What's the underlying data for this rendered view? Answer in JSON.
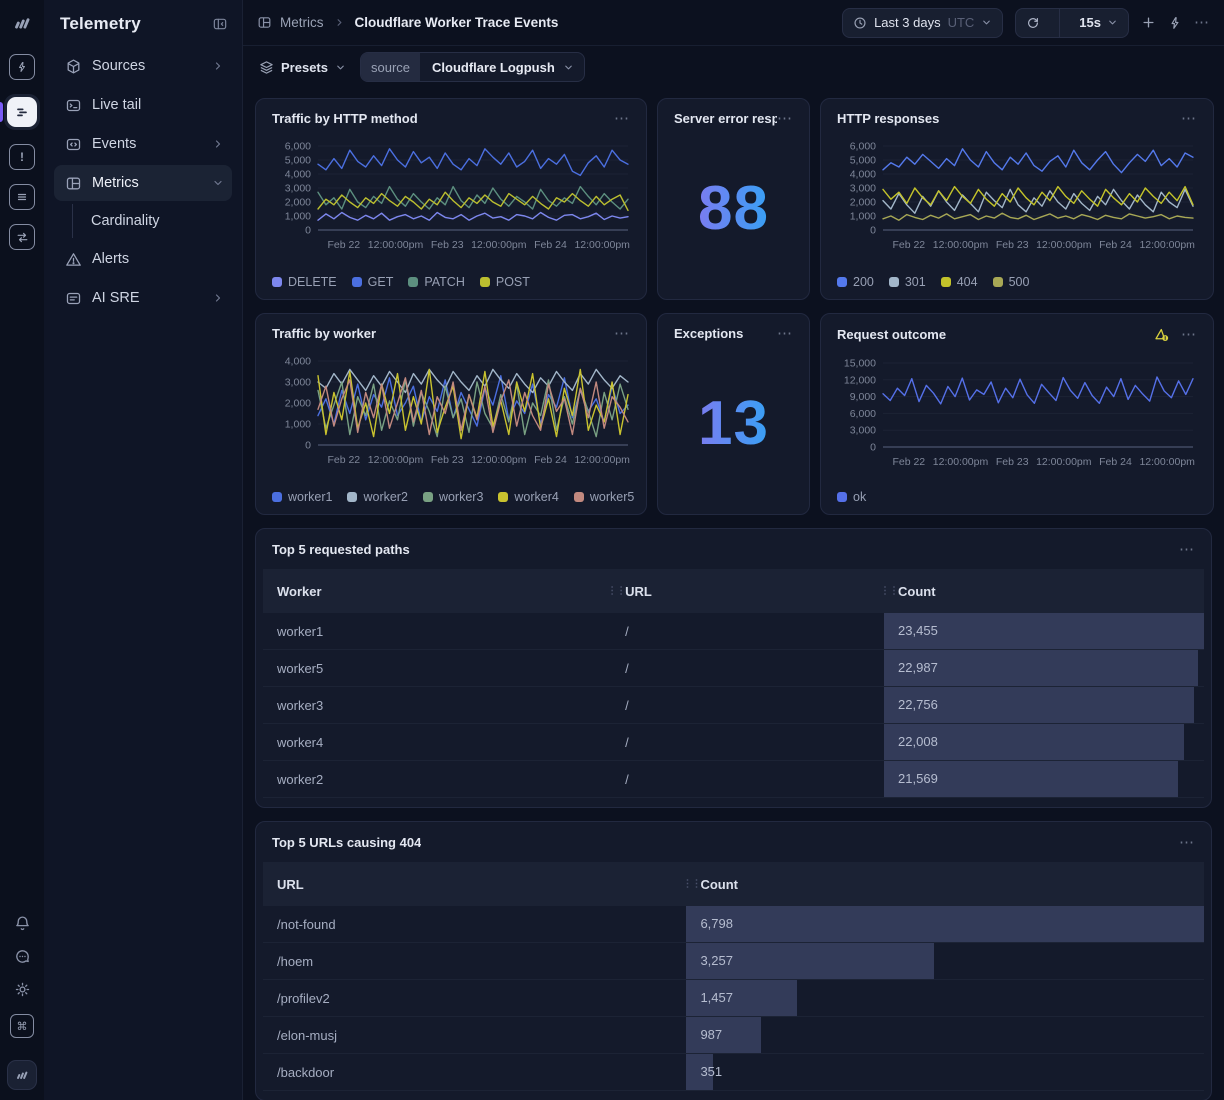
{
  "nav": {
    "title": "Telemetry",
    "items": [
      {
        "label": "Sources",
        "chevron": "right"
      },
      {
        "label": "Live tail"
      },
      {
        "label": "Events",
        "chevron": "right"
      },
      {
        "label": "Metrics",
        "chevron": "down",
        "active": true
      },
      {
        "label": "Cardinality",
        "sub": true
      },
      {
        "label": "Alerts"
      },
      {
        "label": "AI SRE",
        "chevron": "right"
      }
    ]
  },
  "rail_icons": [
    "logo",
    "bolt",
    "live-tail",
    "alert-square",
    "logs",
    "flows",
    "bell",
    "feedback",
    "theme",
    "shortcuts",
    "account"
  ],
  "topbar": {
    "breadcrumb": {
      "section": "Metrics",
      "page": "Cloudflare Worker Trace Events"
    },
    "time_range": {
      "label": "Last 3 days",
      "timezone": "UTC"
    },
    "refresh_interval": "15s"
  },
  "filters": {
    "presets_label": "Presets",
    "source_key": "source",
    "source_value": "Cloudflare Logpush"
  },
  "cards": {
    "traffic_by_http_method": {
      "title": "Traffic by HTTP method"
    },
    "server_errors": {
      "title": "Server error respo...",
      "value": "88"
    },
    "http_responses": {
      "title": "HTTP responses"
    },
    "traffic_by_worker": {
      "title": "Traffic by worker"
    },
    "exceptions": {
      "title": "Exceptions",
      "value": "13"
    },
    "request_outcome": {
      "title": "Request outcome",
      "has_warning": true
    }
  },
  "colors": {
    "stat_gradient_start": "#7a7cf0",
    "stat_gradient_end": "#38a0f5",
    "warning": "#d9d23e",
    "accent": "#7a5cf5"
  },
  "chart_data": [
    {
      "type": "line",
      "title": "Traffic by HTTP method",
      "ylim": [
        0,
        6000
      ],
      "yticks": [
        0,
        1000,
        2000,
        3000,
        4000,
        5000,
        6000
      ],
      "xticks": [
        "Feb 22",
        "12:00:00pm",
        "Feb 23",
        "12:00:00pm",
        "Feb 24",
        "12:00:00pm"
      ],
      "grid": true,
      "legend_position": "bottom",
      "series": [
        {
          "name": "DELETE",
          "color": "#7d87ee",
          "values": [
            700,
            1150,
            800,
            1250,
            900,
            700,
            1050,
            800,
            1200,
            700,
            950,
            1100,
            800,
            1000,
            700,
            1250,
            900,
            800,
            1100,
            700,
            1000,
            1200,
            850,
            950,
            700,
            1100,
            1000,
            800,
            1250,
            900,
            700,
            1050,
            1100,
            800,
            950,
            1200,
            750,
            1000,
            850,
            950
          ]
        },
        {
          "name": "GET",
          "color": "#4b6fe0",
          "values": [
            4700,
            4300,
            5100,
            4400,
            5700,
            4900,
            4500,
            5300,
            4600,
            5800,
            5000,
            4500,
            5600,
            4800,
            5200,
            4400,
            5500,
            4700,
            4300,
            5100,
            4600,
            5800,
            5200,
            4700,
            5500,
            4500,
            4900,
            5700,
            4400,
            5100,
            4700,
            5400,
            4200,
            3900,
            4800,
            5300,
            4500,
            5700,
            5000,
            4700
          ]
        },
        {
          "name": "PATCH",
          "color": "#5c8f7f",
          "values": [
            2700,
            1800,
            2300,
            1500,
            2900,
            2000,
            1600,
            2400,
            1900,
            3100,
            2200,
            1700,
            2600,
            2000,
            1500,
            2300,
            1800,
            3100,
            2100,
            1600,
            2500,
            1900,
            3000,
            2200,
            1700,
            2400,
            2000,
            1500,
            2900,
            2100,
            1700,
            2300,
            1900,
            3100,
            2400,
            1800,
            2600,
            2000,
            1500,
            2200
          ]
        },
        {
          "name": "POST",
          "color": "#bcbf2f",
          "values": [
            1500,
            2200,
            1800,
            2500,
            2000,
            1600,
            2300,
            1900,
            2600,
            2100,
            1700,
            2400,
            2000,
            1500,
            2200,
            1800,
            2700,
            2100,
            1600,
            2300,
            1900,
            2500,
            2000,
            1700,
            2600,
            2200,
            1800,
            2400,
            1900,
            1500,
            2300,
            2000,
            2600,
            2100,
            1700,
            2400,
            1800,
            2200,
            2500,
            1400
          ]
        }
      ]
    },
    {
      "type": "line",
      "title": "HTTP responses",
      "ylim": [
        0,
        6000
      ],
      "yticks": [
        0,
        1000,
        2000,
        3000,
        4000,
        5000,
        6000
      ],
      "xticks": [
        "Feb 22",
        "12:00:00pm",
        "Feb 23",
        "12:00:00pm",
        "Feb 24",
        "12:00:00pm"
      ],
      "grid": true,
      "legend_position": "bottom",
      "series": [
        {
          "name": "200",
          "color": "#5479ec",
          "values": [
            4300,
            4800,
            4500,
            5200,
            4700,
            5400,
            4900,
            4400,
            5100,
            4600,
            5800,
            5000,
            4500,
            5600,
            4800,
            4300,
            5200,
            4700,
            5500,
            4600,
            4200,
            4900,
            5300,
            4500,
            5700,
            4800,
            4300,
            5000,
            5600,
            4700,
            4100,
            4800,
            5400,
            4900,
            5700,
            4600,
            5100,
            4500,
            5500,
            5200
          ]
        },
        {
          "name": "301",
          "color": "#a2b6c9",
          "values": [
            2100,
            1500,
            2600,
            1800,
            1200,
            2400,
            1700,
            2800,
            2000,
            1400,
            2500,
            1900,
            1300,
            2700,
            2100,
            1600,
            2900,
            1800,
            1300,
            2300,
            1700,
            2800,
            2000,
            1500,
            2600,
            1900,
            1400,
            2400,
            1800,
            2900,
            2100,
            1500,
            2500,
            1800,
            1300,
            2700,
            2000,
            1600,
            2900,
            1700
          ]
        },
        {
          "name": "404",
          "color": "#c3c32a",
          "values": [
            2900,
            2200,
            2700,
            1900,
            3000,
            2300,
            1800,
            2800,
            2100,
            3100,
            2400,
            1900,
            2900,
            2200,
            1700,
            2600,
            2000,
            3000,
            2300,
            1800,
            2700,
            2100,
            3100,
            2400,
            1900,
            2800,
            2200,
            1700,
            2900,
            2300,
            1800,
            2600,
            2000,
            3000,
            2400,
            1900,
            2700,
            2100,
            3100,
            1800
          ]
        },
        {
          "name": "500",
          "color": "#a8a855",
          "values": [
            800,
            1000,
            700,
            1100,
            900,
            750,
            1050,
            850,
            1150,
            800,
            950,
            1100,
            750,
            1000,
            850,
            1200,
            900,
            800,
            1050,
            750,
            950,
            1150,
            850,
            1000,
            800,
            1100,
            950,
            750,
            1050,
            900,
            800,
            1150,
            1000,
            850,
            950,
            1100,
            800,
            1000,
            900,
            850
          ]
        }
      ]
    },
    {
      "type": "line",
      "title": "Traffic by worker",
      "ylim": [
        0,
        4000
      ],
      "yticks": [
        0,
        1000,
        2000,
        3000,
        4000
      ],
      "xticks": [
        "Feb 22",
        "12:00:00pm",
        "Feb 23",
        "12:00:00pm",
        "Feb 24",
        "12:00:00pm"
      ],
      "grid": true,
      "legend_position": "bottom",
      "series": [
        {
          "name": "worker1",
          "color": "#4b6fe0",
          "values": [
            1400,
            2200,
            1000,
            2600,
            1500,
            2900,
            1200,
            2400,
            1800,
            3200,
            1400,
            2000,
            2800,
            1100,
            2300,
            1600,
            3100,
            1300,
            2500,
            1700,
            900,
            2700,
            1900,
            3300,
            1200,
            2100,
            1500,
            2900,
            1000,
            2400,
            1800,
            3200,
            1300,
            2600,
            1600,
            2200,
            1100,
            2800,
            1500,
            1900
          ]
        },
        {
          "name": "worker2",
          "color": "#a2b6c9",
          "values": [
            3000,
            2700,
            3400,
            2900,
            3600,
            3100,
            2600,
            3300,
            2800,
            3500,
            3000,
            2500,
            3400,
            2900,
            3600,
            3100,
            2700,
            3500,
            3000,
            2600,
            3300,
            2800,
            3600,
            3100,
            2700,
            3400,
            2900,
            2500,
            3200,
            2800,
            3500,
            3000,
            2600,
            3400,
            2900,
            3600,
            3100,
            2700,
            3300,
            3000
          ]
        },
        {
          "name": "worker3",
          "color": "#79a183",
          "values": [
            2600,
            800,
            1900,
            3000,
            500,
            2300,
            1400,
            2900,
            700,
            2100,
            1200,
            3100,
            900,
            2500,
            1600,
            400,
            2800,
            1300,
            2200,
            600,
            3000,
            1500,
            800,
            2400,
            1100,
            2900,
            500,
            2000,
            1400,
            3100,
            700,
            2300,
            1000,
            2700,
            1600,
            400,
            2500,
            1200,
            2900,
            1700
          ]
        },
        {
          "name": "worker4",
          "color": "#c9c32f",
          "values": [
            3300,
            500,
            2500,
            1200,
            3500,
            800,
            2000,
            400,
            2900,
            1500,
            3400,
            700,
            2300,
            1000,
            3600,
            600,
            1800,
            2800,
            300,
            2400,
            1300,
            3500,
            900,
            2100,
            500,
            3000,
            1600,
            3400,
            800,
            2200,
            400,
            2700,
            1400,
            3600,
            700,
            1900,
            1100,
            3000,
            500,
            2400
          ]
        },
        {
          "name": "worker5",
          "color": "#c2897f",
          "values": [
            1700,
            2800,
            900,
            2200,
            3100,
            600,
            2500,
            1300,
            2900,
            800,
            2000,
            3200,
            1100,
            2600,
            500,
            2300,
            1500,
            3000,
            700,
            2400,
            1200,
            2800,
            600,
            2100,
            3100,
            900,
            2500,
            1400,
            700,
            2900,
            1600,
            2200,
            500,
            2700,
            1300,
            3000,
            800,
            2300,
            1800,
            1100
          ]
        }
      ]
    },
    {
      "type": "line",
      "title": "Request outcome",
      "ylim": [
        0,
        15000
      ],
      "yticks": [
        0,
        3000,
        6000,
        9000,
        12000,
        15000
      ],
      "xticks": [
        "Feb 22",
        "12:00:00pm",
        "Feb 23",
        "12:00:00pm",
        "Feb 24",
        "12:00:00pm"
      ],
      "grid": true,
      "legend_position": "bottom",
      "series": [
        {
          "name": "ok",
          "color": "#5570e8",
          "values": [
            9500,
            8300,
            10500,
            9200,
            12200,
            8100,
            11000,
            9600,
            7700,
            10800,
            9000,
            12300,
            8400,
            10200,
            9400,
            11600,
            7900,
            10500,
            8800,
            12100,
            9300,
            7800,
            11200,
            9700,
            8300,
            12400,
            10100,
            8700,
            11500,
            9200,
            7800,
            10700,
            9000,
            12200,
            8500,
            11000,
            9500,
            8200,
            12500,
            10000,
            8800,
            11800,
            9400,
            12200
          ]
        }
      ]
    }
  ],
  "tables": [
    {
      "title": "Top 5 requested paths",
      "columns": [
        "Worker",
        "URL",
        "Count"
      ],
      "max_value": 23455,
      "rows": [
        {
          "worker": "worker1",
          "url": "/",
          "count": "23,455",
          "value": 23455
        },
        {
          "worker": "worker5",
          "url": "/",
          "count": "22,987",
          "value": 22987
        },
        {
          "worker": "worker3",
          "url": "/",
          "count": "22,756",
          "value": 22756
        },
        {
          "worker": "worker4",
          "url": "/",
          "count": "22,008",
          "value": 22008
        },
        {
          "worker": "worker2",
          "url": "/",
          "count": "21,569",
          "value": 21569
        }
      ]
    },
    {
      "title": "Top 5 URLs causing 404",
      "columns": [
        "URL",
        "Count"
      ],
      "max_value": 6798,
      "rows": [
        {
          "url": "/not-found",
          "count": "6,798",
          "value": 6798
        },
        {
          "url": "/hoem",
          "count": "3,257",
          "value": 3257
        },
        {
          "url": "/profilev2",
          "count": "1,457",
          "value": 1457
        },
        {
          "url": "/elon-musj",
          "count": "987",
          "value": 987
        },
        {
          "url": "/backdoor",
          "count": "351",
          "value": 351
        }
      ]
    }
  ]
}
